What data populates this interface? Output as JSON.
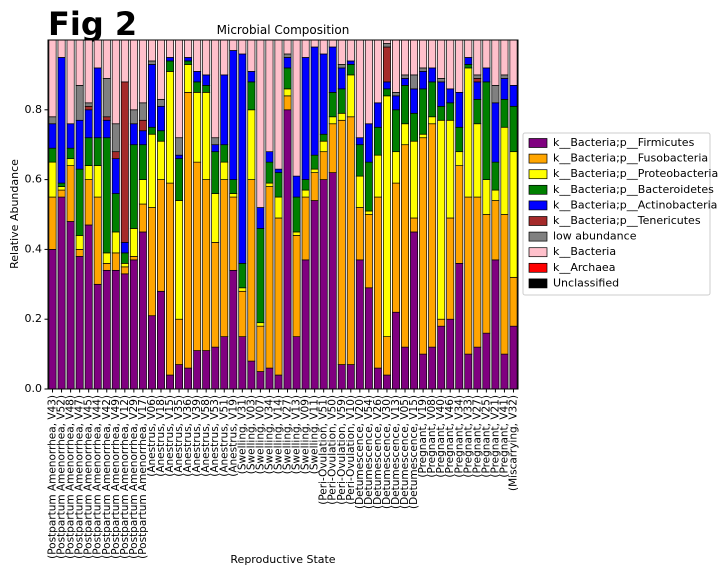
{
  "figure_label": "Fig 2",
  "chart_data": {
    "type": "stacked_bar",
    "title": "Microbial Composition",
    "x_label": "Reproductive State",
    "y_label": "Relative Abundance",
    "categories": [
      "(Postpartum Amenorrhea, V43)",
      "(Postpartum Amenorrhea, V52)",
      "(Postpartum Amenorrhea, V48)",
      "(Postpartum Amenorrhea, V47)",
      "(Postpartum Amenorrhea, V45)",
      "(Postpartum Amenorrhea, V44)",
      "(Postpartum Amenorrhea, V42)",
      "(Postpartum Amenorrhea, V49)",
      "(Postpartum Amenorrhea, V12)",
      "(Postpartum Amenorrhea, V29)",
      "(Postpartum Amenorrhea, V17)",
      "(Anestrus, V06)",
      "(Anestrus, V18)",
      "(Anestrus, V15)",
      "(Anestrus, V35)",
      "(Anestrus, V36)",
      "(Anestrus, V39)",
      "(Anestrus, V58)",
      "(Anestrus, V53)",
      "(Anestrus, V51)",
      "(Anestrus, V19)",
      "(Swelling, V31)",
      "(Swelling, V03)",
      "(Swelling, V07)",
      "(Swelling, V34)",
      "(Swelling, V14)",
      "(Swelling, V27)",
      "(Swelling, V13)",
      "(Swelling, V09)",
      "(Swelling, V11)",
      "(Peri-Ovulation, V51)",
      "(Peri-Ovulation, V50)",
      "(Peri-Ovulation, V59)",
      "(Peri-Ovulation, V10)",
      "(Detumescence, V20)",
      "(Detumescence, V54)",
      "(Detumescence, V26)",
      "(Detumescence, V30)",
      "(Detumescence, V13)",
      "(Detumescence, V05)",
      "(Detumescence, V15)",
      "(Pregnant, V19)",
      "(Pregnant, V08)",
      "(Pregnant, V40)",
      "(Pregnant, V46)",
      "(Pregnant, V34)",
      "(Pregnant, V33)",
      "(Pregnant, V27)",
      "(Pregnant, V25)",
      "(Pregnant, V21)",
      "(Pregnant, V41)",
      "(Miscarrying, V32)"
    ],
    "ylim": [
      0,
      1.0
    ],
    "yticks": [
      {
        "value": 0,
        "label": "0.0"
      },
      0.2,
      0.4,
      0.6,
      0.8
    ],
    "legend_position": "right",
    "series": [
      {
        "name": "k__Bacteria;p__Firmicutes",
        "color": "#800080",
        "values": [
          0.4,
          0.55,
          0.48,
          0.38,
          0.47,
          0.3,
          0.34,
          0.34,
          0.33,
          0.37,
          0.45,
          0.21,
          0.28,
          0.04,
          0.07,
          0.06,
          0.11,
          0.11,
          0.12,
          0.15,
          0.34,
          0.15,
          0.08,
          0.05,
          0.06,
          0.04,
          0.8,
          0.15,
          0.37,
          0.54,
          0.6,
          0.62,
          0.07,
          0.07,
          0.37,
          0.29,
          0.06,
          0.04,
          0.22,
          0.12,
          0.45,
          0.1,
          0.12,
          0.18,
          0.2,
          0.36,
          0.1,
          0.12,
          0.16,
          0.37,
          0.1,
          0.18
        ]
      },
      {
        "name": "k__Bacteria;p__Fusobacteria",
        "color": "#ffa500",
        "values": [
          0.15,
          0.02,
          0.16,
          0.02,
          0.13,
          0.25,
          0.02,
          0.05,
          0.02,
          0.01,
          0.08,
          0.31,
          0.32,
          0.55,
          0.13,
          0.79,
          0.54,
          0.49,
          0.3,
          0.45,
          0.21,
          0.13,
          0.52,
          0.13,
          0.52,
          0.45,
          0.04,
          0.29,
          0.18,
          0.08,
          0.08,
          0.14,
          0.7,
          0.71,
          0.15,
          0.21,
          0.49,
          0.11,
          0.37,
          0.58,
          0.04,
          0.62,
          0.64,
          0.02,
          0.29,
          0.28,
          0.45,
          0.43,
          0.34,
          0.17,
          0.4,
          0.14
        ]
      },
      {
        "name": "k__Bacteria;p__Proteobacteria",
        "color": "#ffff00",
        "values": [
          0.1,
          0.01,
          0.02,
          0.04,
          0.04,
          0.09,
          0.03,
          0.06,
          0.01,
          0.08,
          0.07,
          0.21,
          0.11,
          0.32,
          0.34,
          0.08,
          0.2,
          0.25,
          0.14,
          0.05,
          0.01,
          0.01,
          0.2,
          0.01,
          0.01,
          0.06,
          0.02,
          0.01,
          0.02,
          0.01,
          0.03,
          0.02,
          0.02,
          0.12,
          0.09,
          0.01,
          0.12,
          0.69,
          0.09,
          0.06,
          0.22,
          0.01,
          0.02,
          0.57,
          0.28,
          0.04,
          0.37,
          0.21,
          0.1,
          0.03,
          0.25,
          0.36
        ]
      },
      {
        "name": "k__Bacteria;p__Bacteroidetes",
        "color": "#008000",
        "values": [
          0.04,
          0.01,
          0.03,
          0.19,
          0.08,
          0.08,
          0.33,
          0.11,
          0.03,
          0.24,
          0.1,
          0.02,
          0.03,
          0.03,
          0.12,
          0.01,
          0.03,
          0.02,
          0.12,
          0.05,
          0.04,
          0.07,
          0.08,
          0.27,
          0.06,
          0.07,
          0.06,
          0.1,
          0.03,
          0.04,
          0.02,
          0.07,
          0.07,
          0.03,
          0.09,
          0.14,
          0.08,
          0.02,
          0.12,
          0.11,
          0.08,
          0.13,
          0.1,
          0.04,
          0.05,
          0.07,
          0.01,
          0.07,
          0.28,
          0.08,
          0.08,
          0.13
        ]
      },
      {
        "name": "k__Bacteria;p__Actinobacteria",
        "color": "#0000ff",
        "values": [
          0.07,
          0.36,
          0.07,
          0.14,
          0.08,
          0.2,
          0.05,
          0.1,
          0.03,
          0.06,
          0.04,
          0.18,
          0.07,
          0.01,
          0.01,
          0.01,
          0.03,
          0.03,
          0.02,
          0.2,
          0.37,
          0.6,
          0.03,
          0.06,
          0.03,
          0.01,
          0.03,
          0.06,
          0.35,
          0.31,
          0.23,
          0.13,
          0.06,
          0.01,
          0.02,
          0.11,
          0.07,
          0.02,
          0.04,
          0.02,
          0.07,
          0.05,
          0.04,
          0.07,
          0.04,
          0.1,
          0.02,
          0.05,
          0.04,
          0.17,
          0.06,
          0.06
        ]
      },
      {
        "name": "k__Bacteria;p__Tenericutes",
        "color": "#a52a2a",
        "values": [
          0,
          0,
          0,
          0,
          0.01,
          0,
          0.01,
          0.02,
          0.46,
          0,
          0.03,
          0,
          0,
          0,
          0,
          0,
          0,
          0,
          0,
          0,
          0,
          0,
          0,
          0,
          0,
          0,
          0,
          0,
          0,
          0,
          0,
          0,
          0,
          0,
          0,
          0,
          0,
          0.1,
          0,
          0,
          0,
          0,
          0,
          0,
          0,
          0,
          0,
          0.01,
          0,
          0,
          0,
          0
        ]
      },
      {
        "name": "low abundance",
        "color": "#808080",
        "values": [
          0.02,
          0,
          0,
          0.1,
          0.01,
          0,
          0.11,
          0.08,
          0,
          0.04,
          0.05,
          0.01,
          0.02,
          0,
          0.05,
          0,
          0,
          0,
          0.02,
          0,
          0,
          0,
          0,
          0,
          0,
          0,
          0.01,
          0,
          0,
          0,
          0,
          0,
          0.01,
          0,
          0,
          0,
          0,
          0.01,
          0.01,
          0.01,
          0.04,
          0.01,
          0,
          0.01,
          0,
          0,
          0,
          0.01,
          0,
          0.05,
          0.01,
          0
        ]
      },
      {
        "name": "k__Bacteria",
        "color": "#ffc0cb",
        "values": [
          0.22,
          0.05,
          0.24,
          0.13,
          0.18,
          0.08,
          0.11,
          0.24,
          0.12,
          0.2,
          0.18,
          0.06,
          0.17,
          0.05,
          0.28,
          0.05,
          0.09,
          0.1,
          0.28,
          0.1,
          0.03,
          0.04,
          0.09,
          0.48,
          0.32,
          0.37,
          0.04,
          0.39,
          0.05,
          0.02,
          0.04,
          0.02,
          0.07,
          0.06,
          0.28,
          0.24,
          0.18,
          0.01,
          0.15,
          0.1,
          0.1,
          0.08,
          0.08,
          0.11,
          0.14,
          0.15,
          0.05,
          0.1,
          0.08,
          0.13,
          0.1,
          0.13
        ]
      },
      {
        "name": "k__Archaea",
        "color": "#ff0000",
        "values": [
          0,
          0,
          0,
          0,
          0,
          0,
          0,
          0,
          0,
          0,
          0,
          0,
          0,
          0,
          0,
          0,
          0,
          0,
          0,
          0,
          0,
          0,
          0,
          0,
          0,
          0,
          0,
          0,
          0,
          0,
          0,
          0,
          0,
          0,
          0,
          0,
          0,
          0,
          0,
          0,
          0,
          0,
          0,
          0,
          0,
          0,
          0,
          0,
          0,
          0,
          0,
          0
        ]
      },
      {
        "name": "Unclassified",
        "color": "#000000",
        "values": [
          0,
          0,
          0,
          0,
          0,
          0,
          0,
          0,
          0,
          0,
          0,
          0,
          0,
          0,
          0,
          0,
          0,
          0,
          0,
          0,
          0,
          0,
          0,
          0,
          0,
          0,
          0,
          0,
          0,
          0,
          0,
          0,
          0,
          0,
          0,
          0,
          0,
          0,
          0,
          0,
          0,
          0,
          0,
          0,
          0,
          0,
          0,
          0,
          0,
          0,
          0,
          0
        ]
      }
    ]
  }
}
